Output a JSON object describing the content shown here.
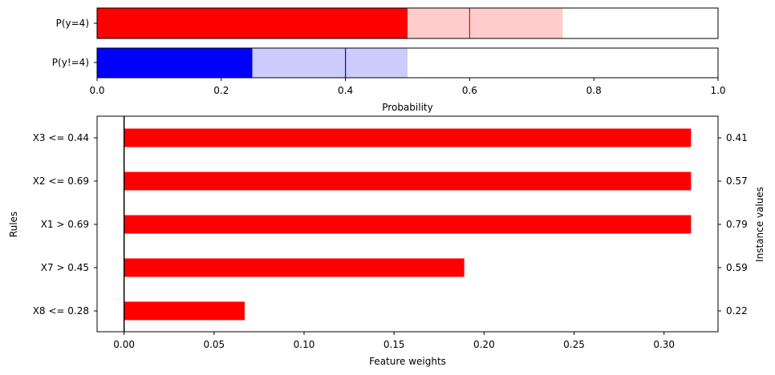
{
  "chart_data": [
    {
      "type": "bar",
      "orientation": "horizontal",
      "categories": [
        "P(y=4)",
        "P(y!=4)"
      ],
      "series": [
        {
          "bar": [
            0,
            0.5
          ],
          "band": [
            0,
            0.75
          ],
          "marker": 0.6,
          "color": "#ff0000",
          "band_color": "#ffcccc"
        },
        {
          "bar": [
            0,
            0.25
          ],
          "band": [
            0.25,
            0.5
          ],
          "marker": 0.4,
          "color": "#0000ff",
          "band_color": "#ccccff"
        }
      ],
      "xlabel": "Probability",
      "xlim": [
        0,
        1
      ],
      "xticks": [
        "0.0",
        "0.2",
        "0.4",
        "0.6",
        "0.8",
        "1.0"
      ],
      "xtick_values": [
        0,
        0.2,
        0.4,
        0.6,
        0.8,
        1.0
      ]
    },
    {
      "type": "bar",
      "orientation": "horizontal",
      "categories": [
        "X3 <= 0.44",
        "X2 <= 0.69",
        "X1 > 0.69",
        "X7 > 0.45",
        "X8 <= 0.28"
      ],
      "values": [
        0.315,
        0.315,
        0.315,
        0.189,
        0.067
      ],
      "instance_values": [
        "0.41",
        "0.57",
        "0.79",
        "0.59",
        "0.22"
      ],
      "color": "#ff0000",
      "xlabel": "Feature weights",
      "ylabel": "Rules",
      "ylabel_right": "Instance values",
      "xlim": [
        -0.015,
        0.33
      ],
      "xticks": [
        "0.00",
        "0.05",
        "0.10",
        "0.15",
        "0.20",
        "0.25",
        "0.30"
      ],
      "xtick_values": [
        0,
        0.05,
        0.1,
        0.15,
        0.2,
        0.25,
        0.3
      ]
    }
  ]
}
